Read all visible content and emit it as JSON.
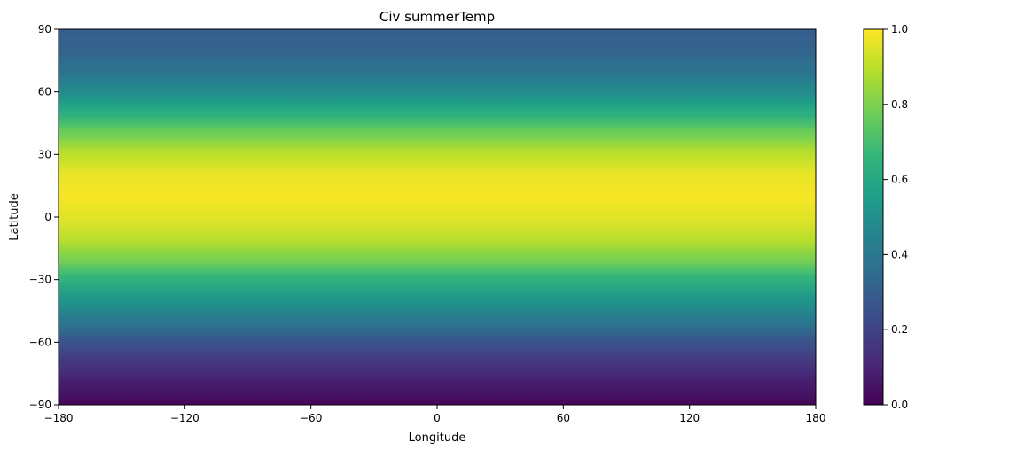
{
  "chart_data": {
    "type": "heatmap",
    "title": "Civ summerTemp",
    "xlabel": "Longitude",
    "ylabel": "Latitude",
    "xlim": [
      -180,
      180
    ],
    "ylim": [
      -90,
      90
    ],
    "x_ticks": [
      -180,
      -120,
      -60,
      0,
      60,
      120,
      180
    ],
    "x_tick_labels": [
      "−180",
      "−120",
      "−60",
      "0",
      "60",
      "120",
      "180"
    ],
    "y_ticks": [
      -90,
      -60,
      -30,
      0,
      30,
      60,
      90
    ],
    "y_tick_labels": [
      "−90",
      "−60",
      "−30",
      "0",
      "30",
      "60",
      "90"
    ],
    "colormap": "viridis",
    "colorbar": {
      "range": [
        0.0,
        1.0
      ],
      "ticks": [
        0.0,
        0.2,
        0.4,
        0.6,
        0.8,
        1.0
      ],
      "tick_labels": [
        "0.0",
        "0.2",
        "0.4",
        "0.6",
        "0.8",
        "1.0"
      ]
    },
    "grid": false,
    "latitude_profile": {
      "latitude": [
        -90,
        -80,
        -70,
        -60,
        -50,
        -40,
        -30,
        -20,
        -10,
        0,
        10,
        20,
        30,
        40,
        50,
        60,
        70,
        80,
        90
      ],
      "value": [
        0.02,
        0.08,
        0.16,
        0.26,
        0.4,
        0.52,
        0.64,
        0.8,
        0.9,
        0.96,
        0.99,
        0.97,
        0.9,
        0.78,
        0.62,
        0.48,
        0.38,
        0.32,
        0.3
      ]
    }
  },
  "colors": {
    "viridis_stops": [
      "#440154",
      "#482878",
      "#3e4989",
      "#31688e",
      "#26828e",
      "#1f9e89",
      "#35b779",
      "#6ece58",
      "#b5de2b",
      "#fde725"
    ],
    "background": "#ffffff",
    "axis": "#000000"
  }
}
